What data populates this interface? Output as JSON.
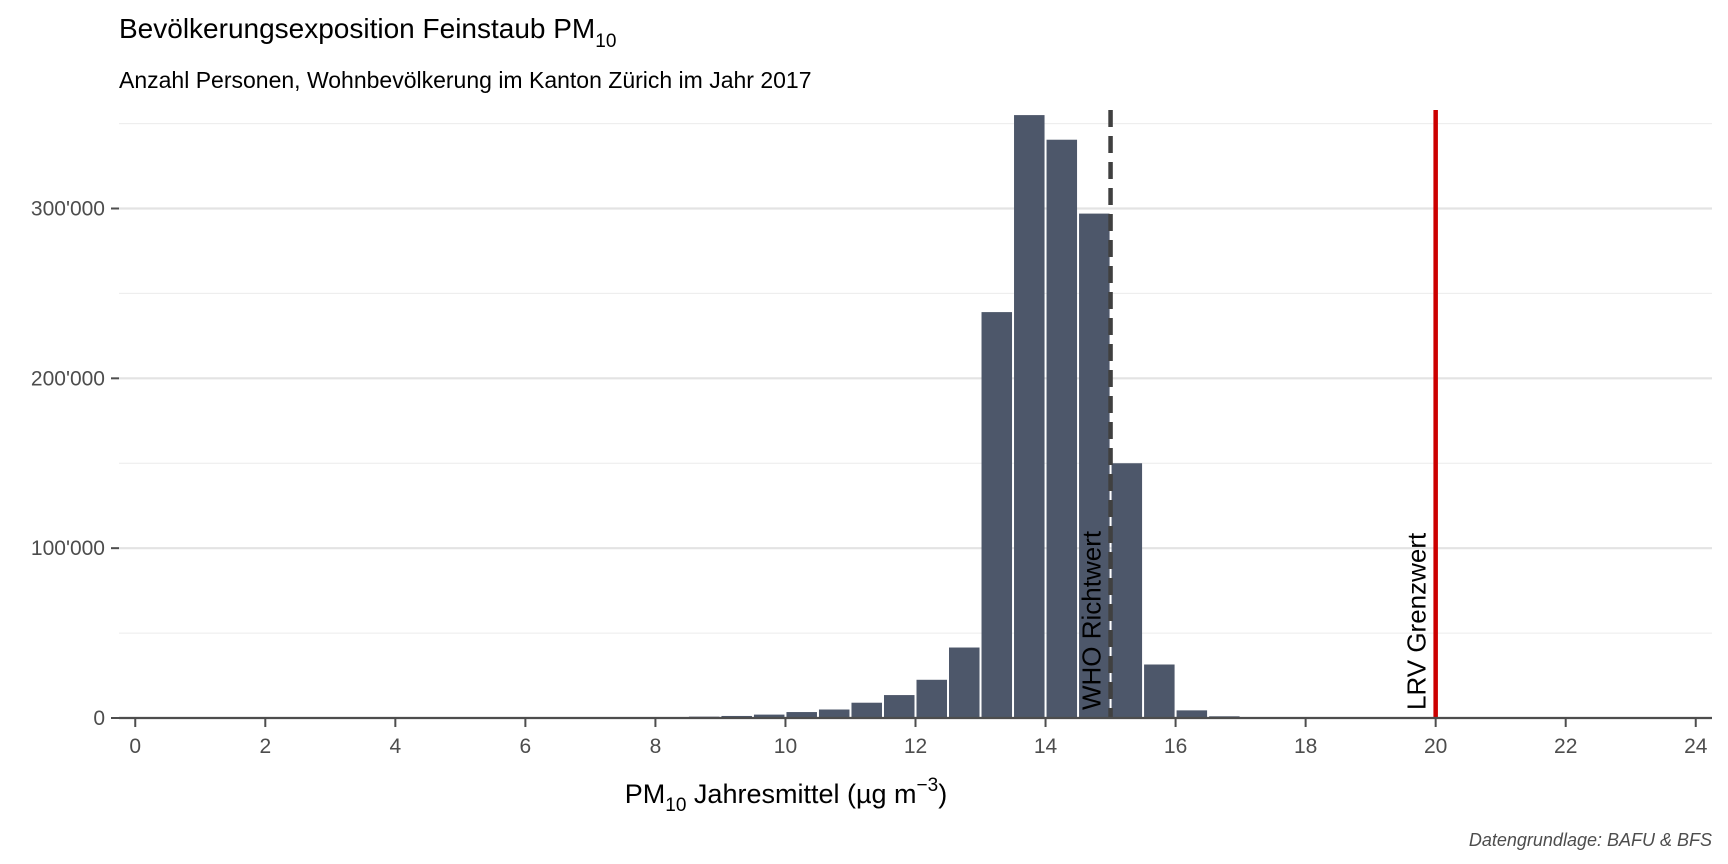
{
  "chart_data": {
    "type": "bar",
    "title": {
      "main": "Bevölkerungsexposition Feinstaub PM",
      "sub": "10"
    },
    "subtitle": "Anzahl Personen, Wohnbevölkerung im Kanton Zürich im Jahr 2017",
    "xlabel": {
      "pre": "PM",
      "sub": "10",
      "mid": " Jahresmittel (µg m",
      "sup": "−3",
      "post": ")"
    },
    "caption": "Datengrundlage: BAFU & BFS",
    "xlim": [
      -0.25,
      24.25
    ],
    "ylim": [
      0,
      358000
    ],
    "x_ticks": [
      0,
      2,
      4,
      6,
      8,
      10,
      12,
      14,
      16,
      18,
      20,
      22,
      24
    ],
    "y_ticks": [
      0,
      100000,
      200000,
      300000
    ],
    "y_tick_labels": [
      "0",
      "100'000",
      "200'000",
      "300'000"
    ],
    "y_minor_grid": [
      50000,
      150000,
      250000,
      350000
    ],
    "bar_width": 0.5,
    "bar_color": "#4d576a",
    "x": [
      8.75,
      9.25,
      9.75,
      10.25,
      10.75,
      11.25,
      11.75,
      12.25,
      12.75,
      13.25,
      13.75,
      14.25,
      14.75,
      15.25,
      15.75,
      16.25,
      16.75
    ],
    "values": [
      800,
      1200,
      2000,
      3500,
      5000,
      9000,
      13500,
      22500,
      41500,
      239000,
      355000,
      340500,
      297000,
      150000,
      31500,
      4500,
      1000
    ],
    "reference_lines": [
      {
        "x": 15,
        "label": "WHO Richtwert",
        "style": "dashed",
        "color": "#404040"
      },
      {
        "x": 20,
        "label": "LRV Grenzwert",
        "style": "solid",
        "color": "#cc0000"
      }
    ]
  }
}
